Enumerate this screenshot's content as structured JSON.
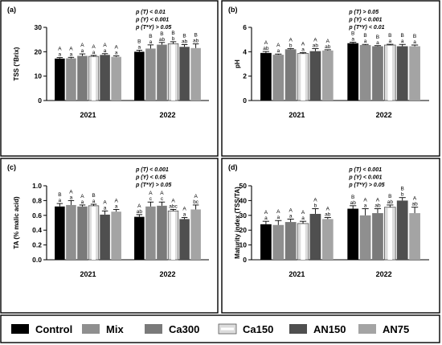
{
  "legend": [
    {
      "name": "Control",
      "color": "#000000",
      "style": "solid"
    },
    {
      "name": "Mix",
      "color": "#8f8f8f",
      "style": "solid"
    },
    {
      "name": "Ca300",
      "color": "#7a7a7a",
      "style": "solid"
    },
    {
      "name": "Ca150",
      "color": "#dcdcdc",
      "style": "outlined"
    },
    {
      "name": "AN150",
      "color": "#4f4f4f",
      "style": "solid"
    },
    {
      "name": "AN75",
      "color": "#a4a4a4",
      "style": "solid"
    }
  ],
  "chart_data": [
    {
      "type": "bar",
      "panel": "(a)",
      "ylabel": "TSS (°Brix)",
      "ylim": [
        0,
        30
      ],
      "yticks": [
        "0",
        "10",
        "20",
        "30"
      ],
      "categories": [
        "2021",
        "2022"
      ],
      "stats": [
        "p (T) < 0.01",
        "p (Y) < 0.001",
        "p (T*Y) > 0.05"
      ],
      "series": [
        {
          "name": "Control",
          "values": [
            17.2,
            20.0
          ],
          "errors": [
            0.4,
            0.6
          ],
          "letters": [
            [
              "A",
              "a"
            ],
            [
              "B",
              "a"
            ]
          ]
        },
        {
          "name": "Mix",
          "values": [
            17.3,
            21.3
          ],
          "errors": [
            0.4,
            1.5
          ],
          "letters": [
            [
              "A",
              "a"
            ],
            [
              "B",
              "a"
            ]
          ]
        },
        {
          "name": "Ca300",
          "values": [
            18.3,
            22.9
          ],
          "errors": [
            0.8,
            0.9
          ],
          "letters": [
            [
              "A",
              "a"
            ],
            [
              "B",
              "ab"
            ]
          ]
        },
        {
          "name": "Ca150",
          "values": [
            18.1,
            23.3
          ],
          "errors": [
            0.4,
            0.8
          ],
          "letters": [
            [
              "A",
              "a"
            ],
            [
              "B",
              "b"
            ]
          ]
        },
        {
          "name": "AN150",
          "values": [
            18.7,
            22.0
          ],
          "errors": [
            0.5,
            0.9
          ],
          "letters": [
            [
              "A",
              "a"
            ],
            [
              "B",
              "ab"
            ]
          ]
        },
        {
          "name": "AN75",
          "values": [
            17.9,
            21.5
          ],
          "errors": [
            0.4,
            1.7
          ],
          "letters": [
            [
              "A",
              "a"
            ],
            [
              "B",
              "ab"
            ]
          ]
        }
      ]
    },
    {
      "type": "bar",
      "panel": "(b)",
      "ylabel": "pH",
      "ylim": [
        0,
        6
      ],
      "yticks": [
        "0",
        "2",
        "4",
        "6"
      ],
      "categories": [
        "2021",
        "2022"
      ],
      "stats": [
        "p (T) > 0.05",
        "p (Y) < 0.001",
        "p (T*Y) < 0.01"
      ],
      "series": [
        {
          "name": "Control",
          "values": [
            3.9,
            4.7
          ],
          "errors": [
            0.12,
            0.08
          ],
          "letters": [
            [
              "A",
              "ab"
            ],
            [
              "B",
              "a"
            ]
          ]
        },
        {
          "name": "Mix",
          "values": [
            3.75,
            4.55
          ],
          "errors": [
            0.06,
            0.05
          ],
          "letters": [
            [
              "A",
              "a"
            ],
            [
              "B",
              "a"
            ]
          ]
        },
        {
          "name": "Ca300",
          "values": [
            4.2,
            4.45
          ],
          "errors": [
            0.06,
            0.05
          ],
          "letters": [
            [
              "A",
              "b"
            ],
            [
              "B",
              "a"
            ]
          ]
        },
        {
          "name": "Ca150",
          "values": [
            3.85,
            4.55
          ],
          "errors": [
            0.08,
            0.06
          ],
          "letters": [
            [
              "A",
              "a"
            ],
            [
              "B",
              "a"
            ]
          ]
        },
        {
          "name": "AN150",
          "values": [
            4.05,
            4.45
          ],
          "errors": [
            0.2,
            0.15
          ],
          "letters": [
            [
              "A",
              "ab"
            ],
            [
              "B",
              "a"
            ]
          ]
        },
        {
          "name": "AN75",
          "values": [
            4.1,
            4.45
          ],
          "errors": [
            0.06,
            0.1
          ],
          "letters": [
            [
              "A",
              "ab"
            ],
            [
              "B",
              "a"
            ]
          ]
        }
      ]
    },
    {
      "type": "bar",
      "panel": "(c)",
      "ylabel": "TA (% malic acid)",
      "ylim": [
        0,
        1.0
      ],
      "yticks": [
        "0.0",
        "0.2",
        "0.4",
        "0.6",
        "0.8",
        "1.0"
      ],
      "categories": [
        "2021",
        "2022"
      ],
      "stats": [
        "p (T) < 0.001",
        "p (Y) < 0.05",
        "p (T*Y) > 0.05"
      ],
      "series": [
        {
          "name": "Control",
          "values": [
            0.72,
            0.58
          ],
          "errors": [
            0.04,
            0.03
          ],
          "letters": [
            [
              "B",
              "a"
            ],
            [
              "A",
              "ab"
            ]
          ]
        },
        {
          "name": "Mix",
          "values": [
            0.74,
            0.72
          ],
          "errors": [
            0.06,
            0.06
          ],
          "letters": [
            [
              "A",
              "a"
            ],
            [
              "A",
              "c"
            ]
          ]
        },
        {
          "name": "Ca300",
          "values": [
            0.72,
            0.73
          ],
          "errors": [
            0.02,
            0.05
          ],
          "letters": [
            [
              "A",
              "a"
            ],
            [
              "A",
              "c"
            ]
          ]
        },
        {
          "name": "Ca150",
          "values": [
            0.73,
            0.66
          ],
          "errors": [
            0.02,
            0.02
          ],
          "letters": [
            [
              "B",
              "a"
            ],
            [
              "A",
              "abc"
            ]
          ]
        },
        {
          "name": "AN150",
          "values": [
            0.61,
            0.55
          ],
          "errors": [
            0.05,
            0.02
          ],
          "letters": [
            [
              "A",
              "a"
            ],
            [
              "A",
              "a"
            ]
          ]
        },
        {
          "name": "AN75",
          "values": [
            0.65,
            0.68
          ],
          "errors": [
            0.03,
            0.06
          ],
          "letters": [
            [
              "A",
              "a"
            ],
            [
              "A",
              "bc"
            ]
          ]
        }
      ]
    },
    {
      "type": "bar",
      "panel": "(d)",
      "ylabel": "Maturity index (TSS/TA)",
      "ylim": [
        0,
        50
      ],
      "yticks": [
        "0",
        "10",
        "20",
        "30",
        "40",
        "50"
      ],
      "categories": [
        "2021",
        "2022"
      ],
      "stats": [
        "p (T) < 0.001",
        "p (Y) < 0.001",
        "p (T*Y) > 0.05"
      ],
      "series": [
        {
          "name": "Control",
          "values": [
            24.0,
            34.5
          ],
          "errors": [
            2.0,
            2.0
          ],
          "letters": [
            [
              "A",
              "a"
            ],
            [
              "B",
              "ab"
            ]
          ]
        },
        {
          "name": "Mix",
          "values": [
            23.5,
            30.0
          ],
          "errors": [
            3.0,
            4.5
          ],
          "letters": [
            [
              "A",
              "a"
            ],
            [
              "A",
              "a"
            ]
          ]
        },
        {
          "name": "Ca300",
          "values": [
            25.5,
            31.5
          ],
          "errors": [
            2.0,
            3.0
          ],
          "letters": [
            [
              "A",
              "a"
            ],
            [
              "A",
              "ab"
            ]
          ]
        },
        {
          "name": "Ca150",
          "values": [
            24.5,
            35.5
          ],
          "errors": [
            1.5,
            1.5
          ],
          "letters": [
            [
              "A",
              "a"
            ],
            [
              "B",
              "ab"
            ]
          ]
        },
        {
          "name": "AN150",
          "values": [
            31.0,
            40.0
          ],
          "errors": [
            3.5,
            2.0
          ],
          "letters": [
            [
              "A",
              "b"
            ],
            [
              "B",
              "b"
            ]
          ]
        },
        {
          "name": "AN75",
          "values": [
            27.5,
            31.5
          ],
          "errors": [
            1.0,
            4.0
          ],
          "letters": [
            [
              "A",
              "ab"
            ],
            [
              "A",
              "ab"
            ]
          ]
        }
      ]
    }
  ]
}
